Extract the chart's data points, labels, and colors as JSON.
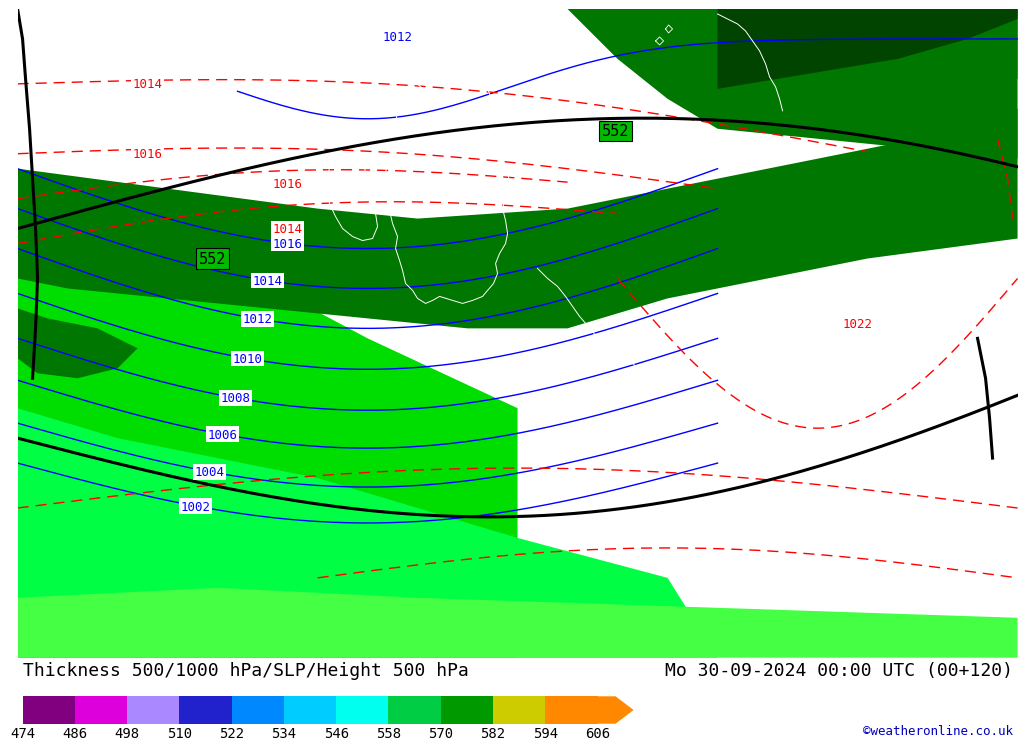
{
  "title_left": "Thickness 500/1000 hPa/SLP/Height 500 hPa",
  "title_right": "Mo 30-09-2024 00:00 UTC (00+120)",
  "credit": "©weatheronline.co.uk",
  "colorbar_values": [
    474,
    486,
    498,
    510,
    522,
    534,
    546,
    558,
    570,
    582,
    594,
    606
  ],
  "bg_color_light": "#00DD00",
  "bg_color_mid": "#00BB00",
  "bg_color_dark": "#007700",
  "bg_color_vdark": "#004400",
  "title_fontsize": 13,
  "credit_fontsize": 9,
  "colorbar_label_fontsize": 10,
  "colorbar_colors": [
    "#800080",
    "#CC00CC",
    "#DD88FF",
    "#2222CC",
    "#0088EE",
    "#00CCFF",
    "#00FFFF",
    "#00CC44",
    "#006600",
    "#CCCC00",
    "#FF8800",
    "#FF2200"
  ]
}
